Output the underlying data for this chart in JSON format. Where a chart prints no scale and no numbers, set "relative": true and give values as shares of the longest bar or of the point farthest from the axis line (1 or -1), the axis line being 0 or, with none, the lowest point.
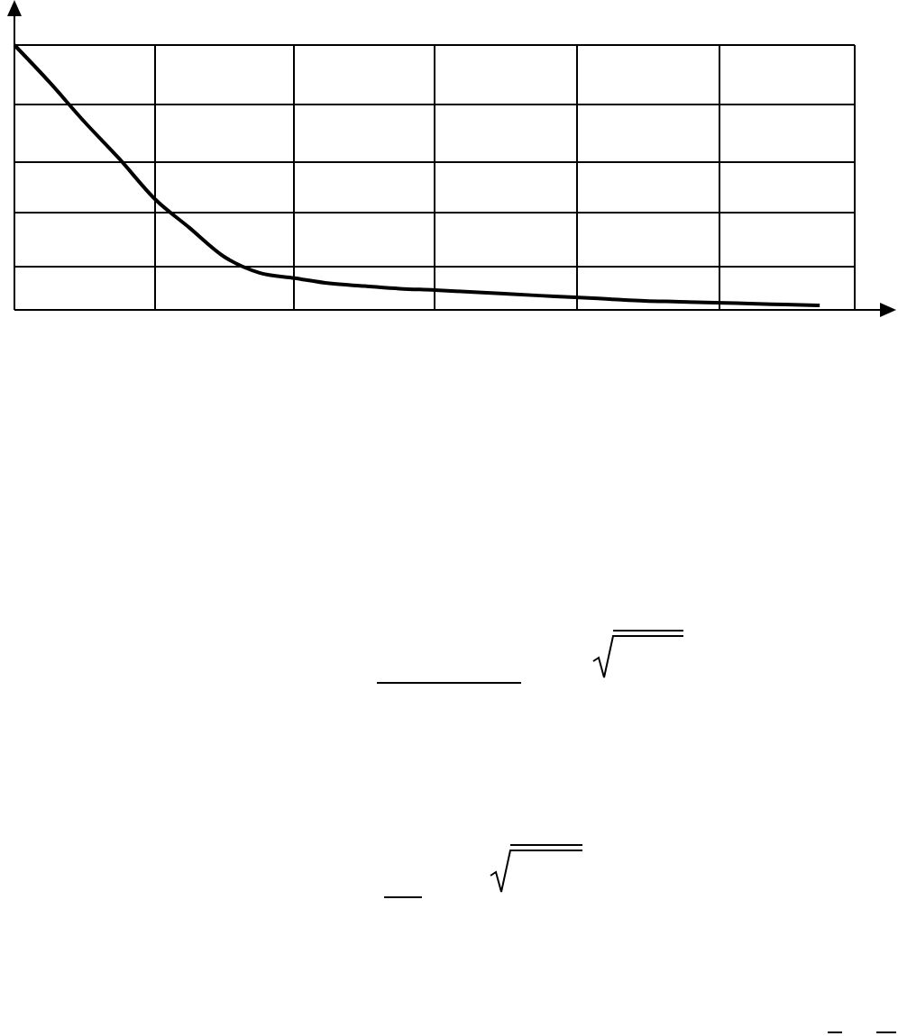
{
  "chart_data": {
    "type": "line",
    "relative": true,
    "grid": true,
    "marker": "none",
    "line_style": "solid",
    "categories": [
      null,
      null,
      null,
      null,
      null,
      null,
      null,
      null,
      null,
      null,
      null,
      null,
      null,
      null,
      null,
      null,
      null,
      null,
      null,
      null,
      null,
      null,
      null,
      null
    ],
    "series": [
      {
        "color": "#000000",
        "values": [
          1.0,
          0.86,
          0.71,
          0.57,
          0.42,
          0.31,
          0.2,
          0.14,
          0.12,
          0.1,
          0.09,
          0.08,
          0.075,
          0.068,
          0.061,
          0.054,
          0.048,
          0.041,
          0.034,
          0.031,
          0.027,
          0.024,
          0.02,
          0.017
        ]
      }
    ]
  }
}
